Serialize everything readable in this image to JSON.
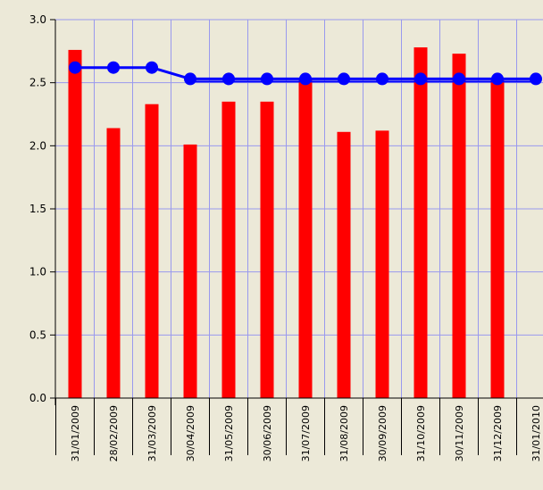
{
  "chart_data": {
    "type": "bar",
    "categories": [
      "31/01/2009",
      "28/02/2009",
      "31/03/2009",
      "30/04/2009",
      "31/05/2009",
      "30/06/2009",
      "31/07/2009",
      "31/08/2009",
      "30/09/2009",
      "31/10/2009",
      "30/11/2009",
      "31/12/2009",
      "31/01/2010"
    ],
    "series": [
      {
        "type": "bar",
        "values": [
          2.76,
          2.14,
          2.33,
          2.01,
          2.35,
          2.35,
          2.53,
          2.11,
          2.12,
          2.78,
          2.73,
          2.52,
          null
        ]
      },
      {
        "type": "line",
        "values": [
          2.62,
          2.62,
          2.62,
          2.53,
          2.53,
          2.53,
          2.53,
          2.53,
          2.53,
          2.53,
          2.53,
          2.53,
          2.53
        ]
      }
    ],
    "y_ticks": [
      "0.0",
      "0.5",
      "1.0",
      "1.5",
      "2.0",
      "2.5",
      "3.0"
    ],
    "ylim": [
      0,
      3.0
    ],
    "grid": true,
    "legend": "none",
    "colors": {
      "bar": "#ff0000",
      "line": "#0000ff",
      "grid": "#9999ee",
      "background": "#ece9d8",
      "axis": "#000000"
    }
  }
}
